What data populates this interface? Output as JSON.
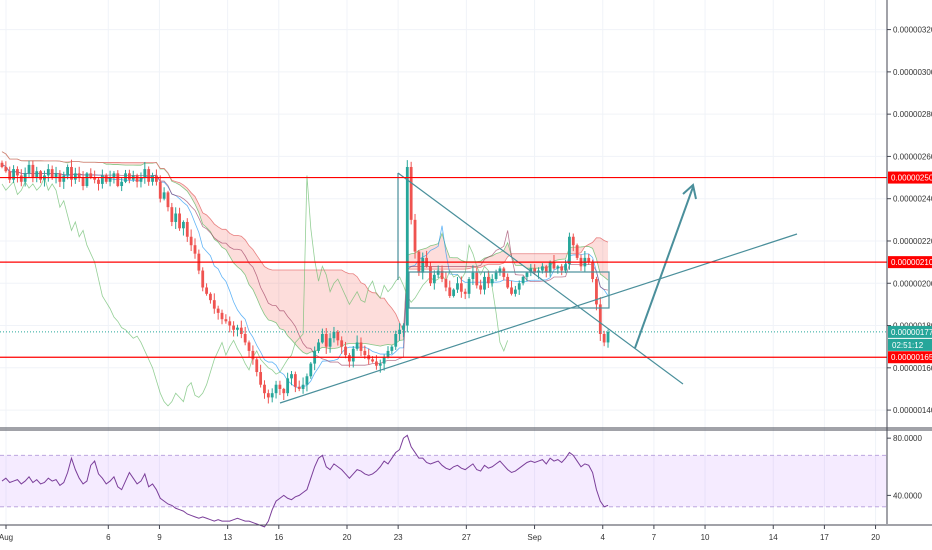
{
  "chart_data": [
    {
      "type": "candlestick",
      "x_ticks": [
        "Aug",
        "6",
        "9",
        "13",
        "16",
        "20",
        "23",
        "27",
        "Sep",
        "4",
        "7",
        "10",
        "14",
        "17",
        "20"
      ],
      "x_tick_day": [
        0,
        6,
        9,
        13,
        16,
        20,
        23,
        27,
        31,
        35,
        38,
        41,
        45,
        48,
        51
      ],
      "y_ticks": [
        1.4e-06,
        1.6e-06,
        1.8e-06,
        2e-06,
        2.2e-06,
        2.4e-06,
        2.6e-06,
        2.8e-06,
        3e-06,
        3.2e-06
      ],
      "ylim": [
        1.32e-06,
        3.34e-06
      ],
      "horizontal_levels": [
        {
          "price": 2.5e-06,
          "label": "0.00000250",
          "color": "#ff0000"
        },
        {
          "price": 2.1e-06,
          "label": "0.00000210",
          "color": "#ff0000"
        },
        {
          "price": 1.65e-06,
          "label": "0.00000165",
          "color": "#ff0000"
        }
      ],
      "last_price": {
        "price": 1.77e-06,
        "label": "0.00000177",
        "countdown": "02:51:12",
        "color": "#26a69a"
      },
      "candles_close": [
        2.55e-06,
        2.53e-06,
        2.49e-06,
        2.54e-06,
        2.51e-06,
        2.48e-06,
        2.52e-06,
        2.56e-06,
        2.5e-06,
        2.53e-06,
        2.49e-06,
        2.51e-06,
        2.54e-06,
        2.5e-06,
        2.52e-06,
        2.48e-06,
        2.51e-06,
        2.55e-06,
        2.49e-06,
        2.52e-06,
        2.5e-06,
        2.46e-06,
        2.52e-06,
        2.5e-06,
        2.49e-06,
        2.47e-06,
        2.51e-06,
        2.48e-06,
        2.5e-06,
        2.52e-06,
        2.46e-06,
        2.48e-06,
        2.52e-06,
        2.49e-06,
        2.51e-06,
        2.48e-06,
        2.5e-06,
        2.54e-06,
        2.48e-06,
        2.51e-06,
        2.48e-06,
        2.4e-06,
        2.43e-06,
        2.36e-06,
        2.29e-06,
        2.33e-06,
        2.26e-06,
        2.29e-06,
        2.22e-06,
        2.18e-06,
        2.14e-06,
        2.06e-06,
        1.98e-06,
        1.95e-06,
        1.92e-06,
        1.88e-06,
        1.86e-06,
        1.83e-06,
        1.82e-06,
        1.8e-06,
        1.78e-06,
        1.79e-06,
        1.76e-06,
        1.72e-06,
        1.68e-06,
        1.64e-06,
        1.58e-06,
        1.52e-06,
        1.48e-06,
        1.46e-06,
        1.48e-06,
        1.52e-06,
        1.5e-06,
        1.48e-06,
        1.55e-06,
        1.57e-06,
        1.51e-06,
        1.5e-06,
        1.52e-06,
        1.56e-06,
        1.62e-06,
        1.68e-06,
        1.72e-06,
        1.76e-06,
        1.7e-06,
        1.74e-06,
        1.77e-06,
        1.73e-06,
        1.7e-06,
        1.66e-06,
        1.63e-06,
        1.69e-06,
        1.72e-06,
        1.68e-06,
        1.66e-06,
        1.64e-06,
        1.63e-06,
        1.61e-06,
        1.62e-06,
        1.65e-06,
        1.68e-06,
        1.7e-06,
        1.76e-06,
        1.78e-06,
        1.8e-06,
        2.55e-06,
        2.3e-06,
        2.15e-06,
        2.05e-06,
        2.12e-06,
        2.08e-06,
        2e-06,
        2.04e-06,
        2.06e-06,
        2.02e-06,
        1.98e-06,
        1.94e-06,
        1.97e-06,
        2e-06,
        1.96e-06,
        1.95e-06,
        2.02e-06,
        2.05e-06,
        1.99e-06,
        1.97e-06,
        2.03e-06,
        2e-06,
        2.02e-06,
        2.05e-06,
        2.07e-06,
        2.03e-06,
        1.98e-06,
        1.95e-06,
        1.97e-06,
        2e-06,
        2.03e-06,
        2.05e-06,
        2.07e-06,
        2.05e-06,
        2.06e-06,
        2.08e-06,
        2.05e-06,
        2.1e-06,
        2.07e-06,
        2.08e-06,
        2.06e-06,
        2.09e-06,
        2.22e-06,
        2.18e-06,
        2.12e-06,
        2.08e-06,
        2.12e-06,
        2.1e-06,
        2.02e-06,
        1.9e-06,
        1.76e-06,
        1.72e-06,
        1.77e-06
      ],
      "sub_panel": {
        "type": "line",
        "y_ticks": [
          40.0,
          80.0
        ],
        "ylim": [
          20,
          85
        ],
        "band": [
          32,
          68
        ],
        "color": "#7b3f9a",
        "values": [
          50,
          52,
          49,
          50,
          51,
          48,
          50,
          53,
          49,
          51,
          48,
          49,
          52,
          50,
          51,
          47,
          49,
          56,
          66,
          58,
          52,
          48,
          50,
          61,
          64,
          55,
          52,
          48,
          50,
          53,
          46,
          44,
          50,
          56,
          52,
          48,
          50,
          55,
          46,
          48,
          44,
          38,
          36,
          34,
          33,
          31,
          30,
          29,
          27,
          26,
          25,
          24,
          25,
          24,
          23,
          22,
          23,
          22,
          22,
          22,
          23,
          24,
          23,
          22,
          22,
          21,
          20,
          19,
          18,
          22,
          30,
          36,
          38,
          40,
          38,
          37,
          39,
          40,
          42,
          44,
          52,
          60,
          66,
          68,
          60,
          58,
          62,
          60,
          58,
          55,
          52,
          55,
          58,
          57,
          55,
          54,
          55,
          57,
          60,
          64,
          62,
          66,
          70,
          72,
          80,
          82,
          74,
          70,
          66,
          66,
          63,
          62,
          63,
          64,
          61,
          59,
          58,
          60,
          61,
          59,
          58,
          60,
          62,
          58,
          57,
          61,
          59,
          60,
          62,
          64,
          61,
          58,
          56,
          57,
          59,
          61,
          63,
          64,
          63,
          64,
          65,
          62,
          66,
          64,
          65,
          63,
          66,
          70,
          68,
          64,
          60,
          62,
          61,
          56,
          44,
          36,
          32,
          33
        ]
      }
    }
  ]
}
